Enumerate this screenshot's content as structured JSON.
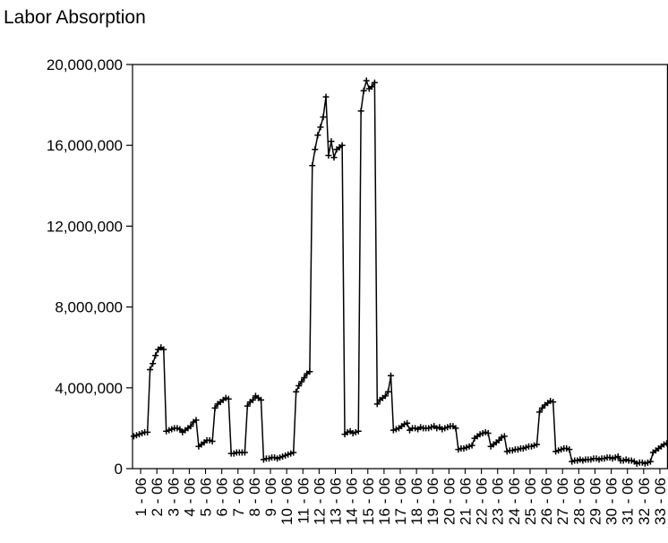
{
  "chart_data": {
    "type": "line",
    "title": "Labor Absorption",
    "xlabel": "",
    "ylabel": "",
    "ylim": [
      0,
      20000000
    ],
    "yticks": [
      0,
      4000000,
      8000000,
      12000000,
      16000000,
      20000000
    ],
    "ytick_labels": [
      "0",
      "4,000,000",
      "8,000,000",
      "12,000,000",
      "16,000,000",
      "20,000,000"
    ],
    "categories": [
      "1 - 06",
      "2 - 06",
      "3 - 06",
      "4 - 06",
      "5 - 06",
      "6 - 06",
      "7 - 06",
      "8 - 06",
      "9 - 06",
      "10 - 06",
      "11 - 06",
      "12 - 06",
      "13 - 06",
      "14 - 06",
      "15 - 06",
      "16 - 06",
      "17 - 06",
      "18 - 06",
      "19 - 06",
      "20 - 06",
      "21 - 06",
      "22 - 06",
      "23 - 06",
      "24 - 06",
      "25 - 06",
      "26 - 06",
      "27 - 06",
      "28 - 06",
      "29 - 06",
      "30 - 06",
      "31 - 06",
      "32 - 06",
      "33 - 06"
    ],
    "marker": "plus",
    "grid": false,
    "legend": "none",
    "line_color": "#000000",
    "series": [
      {
        "values": [
          [
            1600000,
            1650000,
            1700000,
            1750000,
            1800000,
            1800000
          ],
          [
            4900000,
            5200000,
            5600000,
            5900000,
            6000000,
            5900000
          ],
          [
            1850000,
            1900000,
            1950000,
            2000000,
            2000000,
            1950000
          ],
          [
            1800000,
            1900000,
            2000000,
            2100000,
            2300000,
            2400000
          ],
          [
            1100000,
            1200000,
            1300000,
            1400000,
            1400000,
            1350000
          ],
          [
            3000000,
            3200000,
            3300000,
            3400000,
            3500000,
            3450000
          ],
          [
            750000,
            750000,
            800000,
            800000,
            800000,
            800000
          ],
          [
            3100000,
            3300000,
            3400000,
            3600000,
            3500000,
            3400000
          ],
          [
            450000,
            500000,
            500000,
            550000,
            550000,
            500000
          ],
          [
            550000,
            600000,
            650000,
            700000,
            750000,
            800000
          ],
          [
            3800000,
            4100000,
            4300000,
            4500000,
            4700000,
            4800000
          ],
          [
            15000000,
            15800000,
            16500000,
            16900000,
            17400000,
            18400000
          ],
          [
            15500000,
            16200000,
            15400000,
            15800000,
            15900000,
            16000000
          ],
          [
            1700000,
            1800000,
            1850000,
            1750000,
            1800000,
            1850000
          ],
          [
            17700000,
            18700000,
            19200000,
            18800000,
            18900000,
            19100000
          ],
          [
            3200000,
            3400000,
            3500000,
            3600000,
            3800000,
            4600000
          ],
          [
            1900000,
            1950000,
            2000000,
            2100000,
            2200000,
            2250000
          ],
          [
            1900000,
            2000000,
            2000000,
            1950000,
            2050000,
            2000000
          ],
          [
            2000000,
            2000000,
            2050000,
            2100000,
            2000000,
            2050000
          ],
          [
            1950000,
            2000000,
            2050000,
            2100000,
            2100000,
            2000000
          ],
          [
            950000,
            1000000,
            1000000,
            1050000,
            1100000,
            1150000
          ],
          [
            1500000,
            1600000,
            1700000,
            1750000,
            1800000,
            1750000
          ],
          [
            1100000,
            1200000,
            1300000,
            1400000,
            1550000,
            1600000
          ],
          [
            850000,
            900000,
            900000,
            950000,
            950000,
            1000000
          ],
          [
            1000000,
            1050000,
            1100000,
            1100000,
            1150000,
            1200000
          ],
          [
            2800000,
            3000000,
            3150000,
            3250000,
            3350000,
            3300000
          ],
          [
            850000,
            900000,
            950000,
            1000000,
            1000000,
            950000
          ],
          [
            350000,
            400000,
            400000,
            450000,
            400000,
            450000
          ],
          [
            450000,
            450000,
            500000,
            500000,
            450000,
            500000
          ],
          [
            500000,
            550000,
            550000,
            500000,
            550000,
            600000
          ],
          [
            400000,
            400000,
            450000,
            400000,
            400000,
            350000
          ],
          [
            250000,
            300000,
            300000,
            250000,
            300000,
            350000
          ],
          [
            800000,
            900000,
            1000000,
            1100000,
            1200000,
            1250000
          ]
        ]
      }
    ]
  }
}
